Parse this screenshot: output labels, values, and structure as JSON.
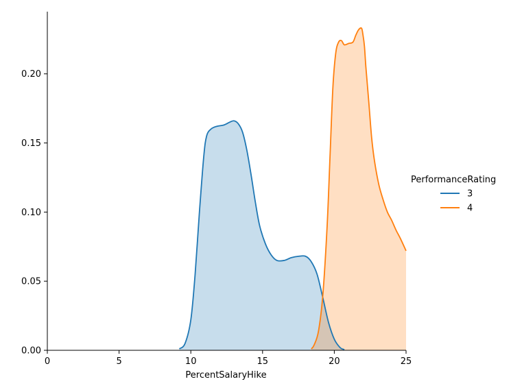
{
  "chart_data": {
    "type": "area",
    "xlabel": "PercentSalaryHike",
    "ylabel": "",
    "xlim": [
      0,
      25
    ],
    "ylim": [
      0,
      0.245
    ],
    "x_ticks": [
      0,
      5,
      10,
      15,
      20,
      25
    ],
    "y_ticks": [
      0.0,
      0.05,
      0.1,
      0.15,
      0.2
    ],
    "x_tick_labels": [
      "0",
      "5",
      "10",
      "15",
      "20",
      "25"
    ],
    "y_tick_labels": [
      "0.00",
      "0.05",
      "0.10",
      "0.15",
      "0.20"
    ],
    "grid": false,
    "legend": {
      "title": "PerformanceRating",
      "placement": "right"
    },
    "series": [
      {
        "name": "3",
        "color": "#1f77b4",
        "fill_color": "#1f77b4",
        "x": [
          9.2,
          9.6,
          10.0,
          10.3,
          10.6,
          10.9,
          11.1,
          11.4,
          11.8,
          12.3,
          12.7,
          13.0,
          13.3,
          13.6,
          13.9,
          14.2,
          14.5,
          14.8,
          15.2,
          15.6,
          16.0,
          16.5,
          17.0,
          17.5,
          18.0,
          18.4,
          18.8,
          19.2,
          19.6,
          20.0,
          20.4,
          20.7
        ],
        "y": [
          0.001,
          0.005,
          0.022,
          0.055,
          0.1,
          0.14,
          0.155,
          0.16,
          0.162,
          0.163,
          0.165,
          0.166,
          0.164,
          0.158,
          0.145,
          0.127,
          0.107,
          0.09,
          0.077,
          0.069,
          0.065,
          0.065,
          0.067,
          0.068,
          0.068,
          0.064,
          0.055,
          0.038,
          0.02,
          0.008,
          0.002,
          0.0005
        ]
      },
      {
        "name": "4",
        "color": "#ff7f0e",
        "fill_color": "#ff7f0e",
        "x": [
          18.4,
          18.6,
          18.9,
          19.2,
          19.5,
          19.7,
          19.9,
          20.1,
          20.3,
          20.5,
          20.7,
          21.0,
          21.3,
          21.5,
          21.7,
          21.9,
          22.0,
          22.1,
          22.2,
          22.4,
          22.6,
          22.8,
          23.1,
          23.4,
          23.7,
          24.0,
          24.3,
          24.6,
          25.0
        ],
        "y": [
          0.001,
          0.004,
          0.014,
          0.04,
          0.09,
          0.14,
          0.19,
          0.215,
          0.223,
          0.224,
          0.221,
          0.222,
          0.223,
          0.228,
          0.232,
          0.233,
          0.228,
          0.22,
          0.205,
          0.18,
          0.154,
          0.137,
          0.12,
          0.109,
          0.1,
          0.094,
          0.087,
          0.081,
          0.072
        ]
      }
    ]
  }
}
